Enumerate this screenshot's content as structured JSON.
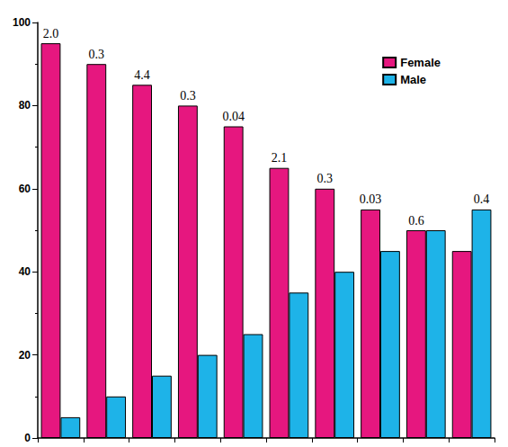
{
  "chart_data": {
    "type": "bar",
    "categories": [
      null,
      null,
      null,
      null,
      null,
      null,
      null,
      null,
      null,
      null
    ],
    "series": [
      {
        "name": "Female",
        "color": "#e6177f",
        "values": [
          95,
          90,
          85,
          80,
          75,
          65,
          60,
          55,
          50,
          45
        ]
      },
      {
        "name": "Male",
        "color": "#1eb3e8",
        "values": [
          5,
          10,
          15,
          20,
          25,
          35,
          40,
          45,
          50,
          55
        ]
      }
    ],
    "annotations": [
      "2.0",
      "0.3",
      "4.4",
      "0.3",
      "0.04",
      "2.1",
      "0.3",
      "0.03",
      "0.6",
      "0.4"
    ],
    "ylim": [
      0,
      100
    ],
    "yticks": [
      0,
      20,
      40,
      60,
      80,
      100
    ],
    "grid": false,
    "legend": "top-right"
  }
}
